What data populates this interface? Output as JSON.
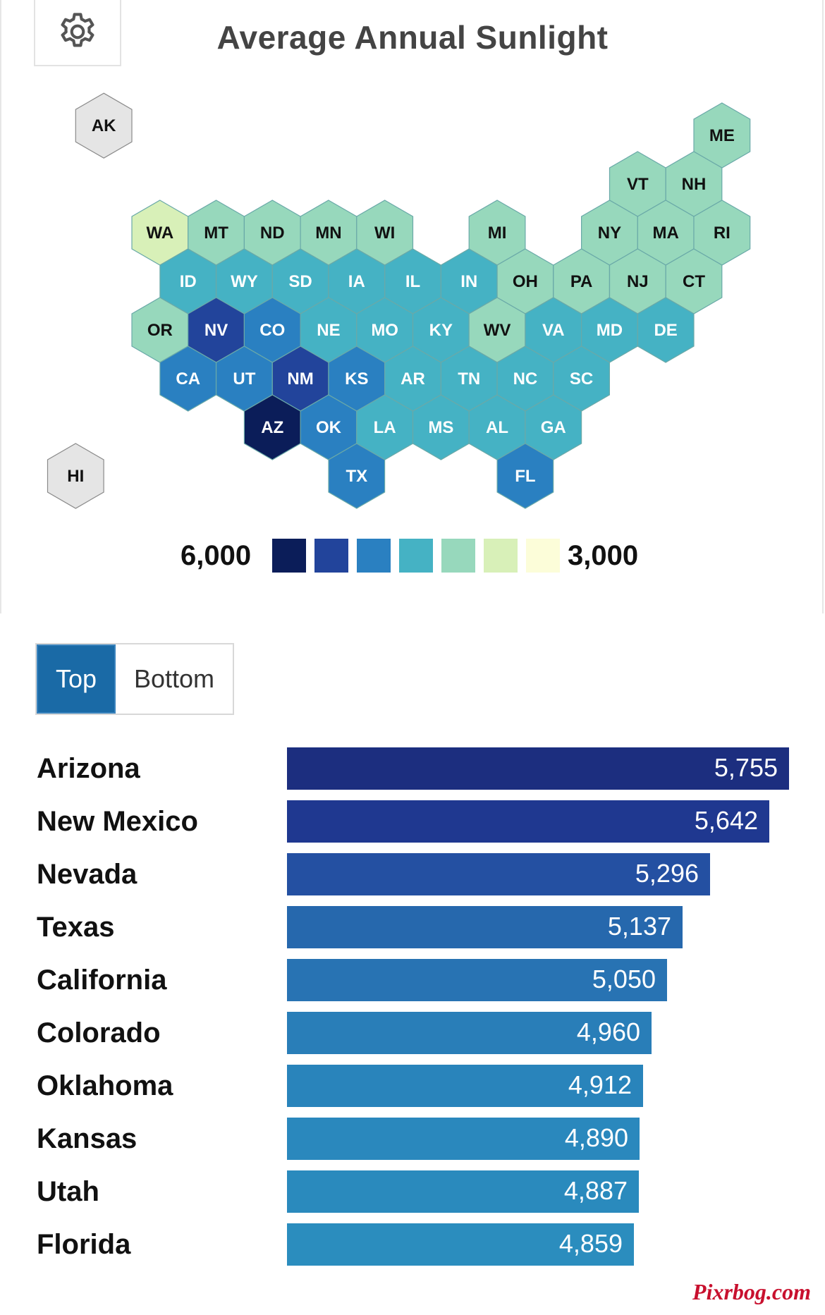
{
  "title": "Average Annual Sunlight",
  "settings_icon": "gear-icon",
  "legend": {
    "max_label": "6,000",
    "min_label": "3,000",
    "colors": [
      "#0b1d59",
      "#22449b",
      "#2a80c1",
      "#45b2c4",
      "#97d8bc",
      "#d8f0b8",
      "#fcfdd9"
    ]
  },
  "colors": {
    "no_data": "#e5e5e5",
    "c1": "#0b1d59",
    "c2": "#22449b",
    "c3": "#2a80c1",
    "c4": "#45b2c4",
    "c5": "#97d8bc",
    "c6": "#d8f0b8"
  },
  "states": [
    {
      "abbr": "AK",
      "row": -0.2,
      "col": -0.5,
      "color": "no_data"
    },
    {
      "abbr": "ME",
      "row": 0,
      "col": 10.5,
      "color": "c5"
    },
    {
      "abbr": "VT",
      "row": 1,
      "col": 9,
      "color": "c5"
    },
    {
      "abbr": "NH",
      "row": 1,
      "col": 10,
      "color": "c5"
    },
    {
      "abbr": "WA",
      "row": 2,
      "col": 0.5,
      "color": "c6"
    },
    {
      "abbr": "MT",
      "row": 2,
      "col": 1.5,
      "color": "c5"
    },
    {
      "abbr": "ND",
      "row": 2,
      "col": 2.5,
      "color": "c5"
    },
    {
      "abbr": "MN",
      "row": 2,
      "col": 3.5,
      "color": "c5"
    },
    {
      "abbr": "WI",
      "row": 2,
      "col": 4.5,
      "color": "c5"
    },
    {
      "abbr": "MI",
      "row": 2,
      "col": 6.5,
      "color": "c5"
    },
    {
      "abbr": "NY",
      "row": 2,
      "col": 8.5,
      "color": "c5"
    },
    {
      "abbr": "MA",
      "row": 2,
      "col": 9.5,
      "color": "c5"
    },
    {
      "abbr": "RI",
      "row": 2,
      "col": 10.5,
      "color": "c5"
    },
    {
      "abbr": "ID",
      "row": 3,
      "col": 1,
      "color": "c4"
    },
    {
      "abbr": "WY",
      "row": 3,
      "col": 2,
      "color": "c4"
    },
    {
      "abbr": "SD",
      "row": 3,
      "col": 3,
      "color": "c4"
    },
    {
      "abbr": "IA",
      "row": 3,
      "col": 4,
      "color": "c4"
    },
    {
      "abbr": "IL",
      "row": 3,
      "col": 5,
      "color": "c4"
    },
    {
      "abbr": "IN",
      "row": 3,
      "col": 6,
      "color": "c4"
    },
    {
      "abbr": "OH",
      "row": 3,
      "col": 7,
      "color": "c5"
    },
    {
      "abbr": "PA",
      "row": 3,
      "col": 8,
      "color": "c5"
    },
    {
      "abbr": "NJ",
      "row": 3,
      "col": 9,
      "color": "c5"
    },
    {
      "abbr": "CT",
      "row": 3,
      "col": 10,
      "color": "c5"
    },
    {
      "abbr": "OR",
      "row": 4,
      "col": 0.5,
      "color": "c5"
    },
    {
      "abbr": "NV",
      "row": 4,
      "col": 1.5,
      "color": "c2"
    },
    {
      "abbr": "CO",
      "row": 4,
      "col": 2.5,
      "color": "c3"
    },
    {
      "abbr": "NE",
      "row": 4,
      "col": 3.5,
      "color": "c4"
    },
    {
      "abbr": "MO",
      "row": 4,
      "col": 4.5,
      "color": "c4"
    },
    {
      "abbr": "KY",
      "row": 4,
      "col": 5.5,
      "color": "c4"
    },
    {
      "abbr": "WV",
      "row": 4,
      "col": 6.5,
      "color": "c5"
    },
    {
      "abbr": "VA",
      "row": 4,
      "col": 7.5,
      "color": "c4"
    },
    {
      "abbr": "MD",
      "row": 4,
      "col": 8.5,
      "color": "c4"
    },
    {
      "abbr": "DE",
      "row": 4,
      "col": 9.5,
      "color": "c4"
    },
    {
      "abbr": "CA",
      "row": 5,
      "col": 1,
      "color": "c3"
    },
    {
      "abbr": "UT",
      "row": 5,
      "col": 2,
      "color": "c3"
    },
    {
      "abbr": "NM",
      "row": 5,
      "col": 3,
      "color": "c2"
    },
    {
      "abbr": "KS",
      "row": 5,
      "col": 4,
      "color": "c3"
    },
    {
      "abbr": "AR",
      "row": 5,
      "col": 5,
      "color": "c4"
    },
    {
      "abbr": "TN",
      "row": 5,
      "col": 6,
      "color": "c4"
    },
    {
      "abbr": "NC",
      "row": 5,
      "col": 7,
      "color": "c4"
    },
    {
      "abbr": "SC",
      "row": 5,
      "col": 8,
      "color": "c4"
    },
    {
      "abbr": "AZ",
      "row": 6,
      "col": 2.5,
      "color": "c1"
    },
    {
      "abbr": "OK",
      "row": 6,
      "col": 3.5,
      "color": "c3"
    },
    {
      "abbr": "LA",
      "row": 6,
      "col": 4.5,
      "color": "c4"
    },
    {
      "abbr": "MS",
      "row": 6,
      "col": 5.5,
      "color": "c4"
    },
    {
      "abbr": "AL",
      "row": 6,
      "col": 6.5,
      "color": "c4"
    },
    {
      "abbr": "GA",
      "row": 6,
      "col": 7.5,
      "color": "c4"
    },
    {
      "abbr": "HI",
      "row": 7,
      "col": -1,
      "color": "no_data"
    },
    {
      "abbr": "TX",
      "row": 7,
      "col": 4,
      "color": "c3"
    },
    {
      "abbr": "FL",
      "row": 7,
      "col": 7,
      "color": "c3"
    }
  ],
  "toggle": {
    "top_label": "Top",
    "bottom_label": "Bottom",
    "active": "top"
  },
  "chart_data": {
    "type": "bar",
    "orientation": "horizontal",
    "categories": [
      "Arizona",
      "New Mexico",
      "Nevada",
      "Texas",
      "California",
      "Colorado",
      "Oklahoma",
      "Kansas",
      "Utah",
      "Florida"
    ],
    "values": [
      5755,
      5642,
      5296,
      5137,
      5050,
      4960,
      4912,
      4890,
      4887,
      4859
    ],
    "value_labels": [
      "5,755",
      "5,642",
      "5,296",
      "5,137",
      "5,050",
      "4,960",
      "4,912",
      "4,890",
      "4,887",
      "4,859"
    ],
    "bar_colors": [
      "#1c2e7f",
      "#1f3890",
      "#2450a2",
      "#2668ad",
      "#2873b3",
      "#297eb8",
      "#2984bb",
      "#2a88bd",
      "#2a8abd",
      "#2b8dbe"
    ],
    "xlim": [
      2850,
      5755
    ]
  },
  "watermark": "Pixrbog.com"
}
